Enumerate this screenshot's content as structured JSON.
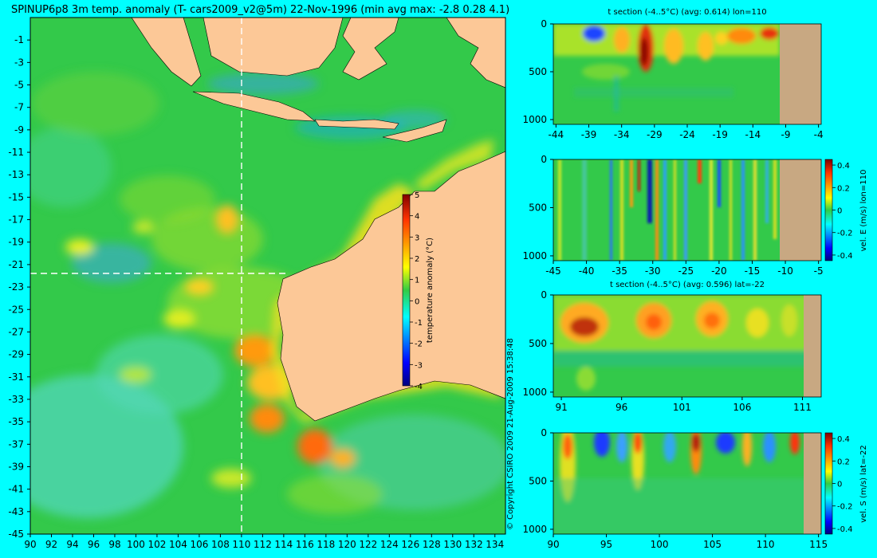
{
  "title": "SPINUP6p8 3m temp. anomaly (T- cars2009_v2@5m) 22-Nov-1996 (min avg max: -2.8 0.28 4.1)",
  "copyright": "© Copyright CSIRO 2009   21-Aug-2009 15:38:48",
  "colors": {
    "background": "#00ffff",
    "land": "#fcc897",
    "section_land": "#c8a882",
    "ocean_base": "#33c94a"
  },
  "chart_data": [
    {
      "type": "heatmap",
      "name": "map",
      "x_ticks": [
        "90",
        "92",
        "94",
        "96",
        "98",
        "100",
        "102",
        "104",
        "106",
        "108",
        "110",
        "112",
        "114",
        "116",
        "118",
        "120",
        "122",
        "124",
        "126",
        "128",
        "130",
        "132",
        "134"
      ],
      "y_ticks": [
        "-1",
        "-3",
        "-5",
        "-7",
        "-9",
        "-11",
        "-13",
        "-15",
        "-17",
        "-19",
        "-21",
        "-23",
        "-25",
        "-27",
        "-29",
        "-31",
        "-33",
        "-35",
        "-37",
        "-39",
        "-41",
        "-43",
        "-45"
      ],
      "xlim": [
        90,
        135
      ],
      "ylim": [
        -45,
        1
      ],
      "section_lon": 110,
      "section_lat": -22,
      "colorbar": {
        "label": "temperature anomaly (°C)",
        "ticks": [
          "5",
          "4",
          "3",
          "2",
          "1",
          "0",
          "-1",
          "-2",
          "-3",
          "-4"
        ],
        "range": [
          -4,
          5
        ]
      }
    },
    {
      "type": "heatmap",
      "name": "t-section-lon",
      "title": "t section (-4..5°C) (avg: 0.614) lon=110",
      "x_ticks": [
        "-44",
        "-39",
        "-34",
        "-29",
        "-24",
        "-19",
        "-14",
        "-9",
        "-4"
      ],
      "y_ticks": [
        "0",
        "500",
        "1000"
      ]
    },
    {
      "type": "heatmap",
      "name": "vel-e-section",
      "colorbar_label": "vel. E (m/s) lon=110",
      "x_ticks": [
        "-45",
        "-40",
        "-35",
        "-30",
        "-25",
        "-20",
        "-15",
        "-10",
        "-5"
      ],
      "y_ticks": [
        "0",
        "500",
        "1000"
      ],
      "colorbar_ticks": [
        "0.4",
        "0.2",
        "0",
        "-0.2",
        "-0.4"
      ]
    },
    {
      "type": "heatmap",
      "name": "t-section-lat",
      "title": "t section (-4..5°C) (avg: 0.596) lat=-22",
      "x_ticks": [
        "91",
        "96",
        "101",
        "106",
        "111"
      ],
      "y_ticks": [
        "0",
        "500",
        "1000"
      ]
    },
    {
      "type": "heatmap",
      "name": "vel-s-section",
      "colorbar_label": "vel. S (m/s) lat=-22",
      "x_ticks": [
        "90",
        "95",
        "100",
        "105",
        "110",
        "115"
      ],
      "y_ticks": [
        "0",
        "500",
        "1000"
      ],
      "colorbar_ticks": [
        "0.4",
        "0.2",
        "0",
        "-0.2",
        "-0.4"
      ]
    }
  ]
}
